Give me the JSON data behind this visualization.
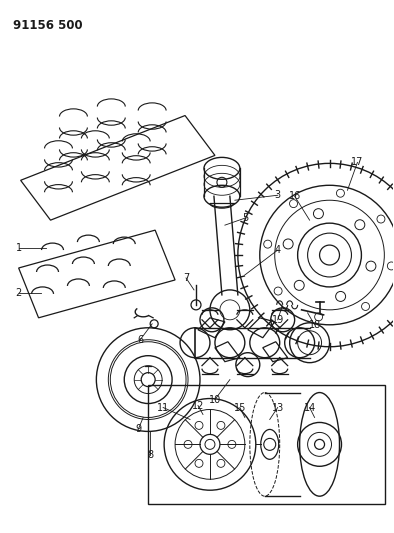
{
  "title": "91156 500",
  "bg_color": "#ffffff",
  "line_color": "#1a1a1a",
  "figsize": [
    3.94,
    5.33
  ],
  "dpi": 100
}
